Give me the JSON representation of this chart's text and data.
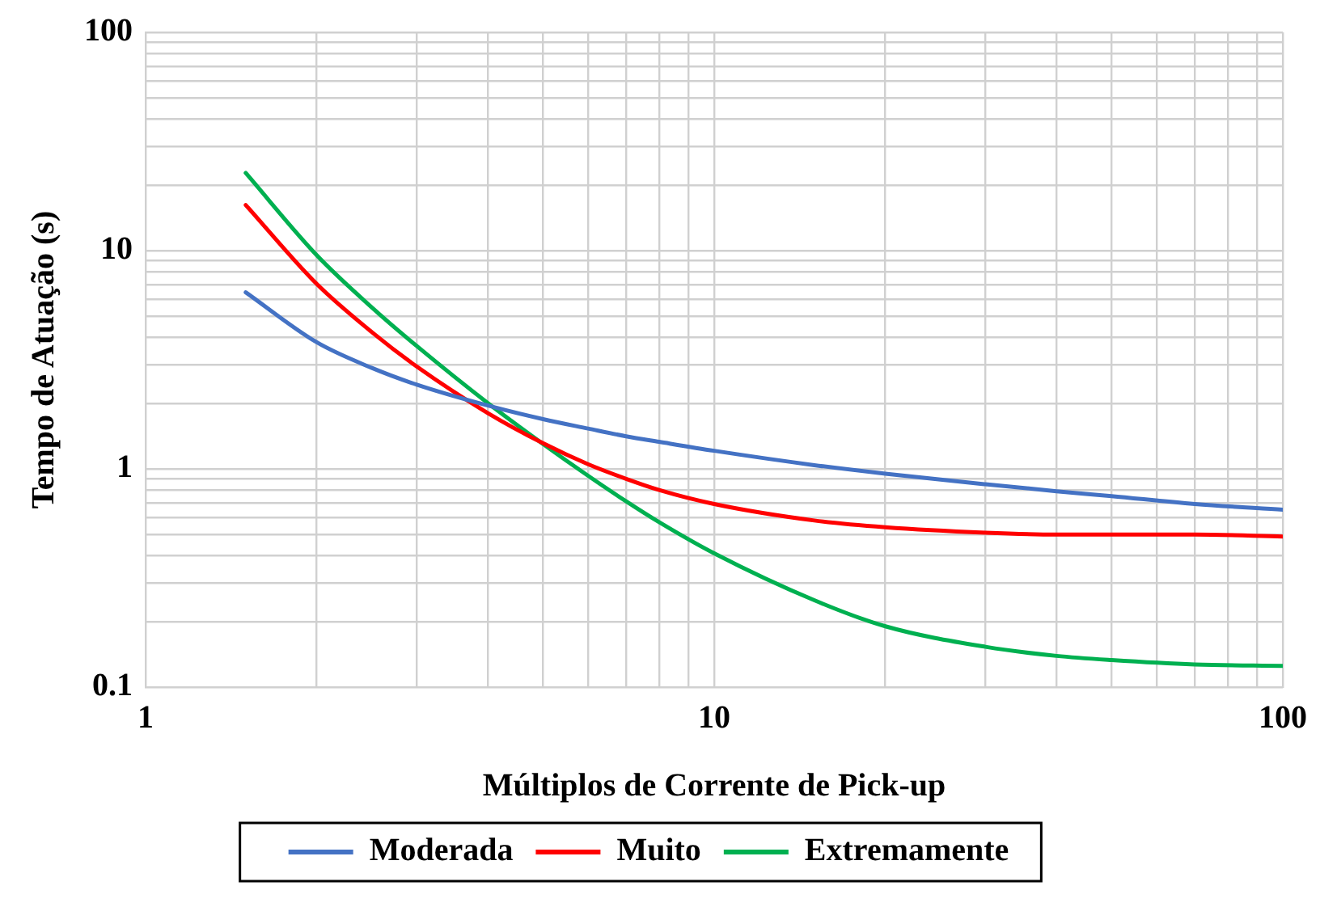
{
  "chart_data": {
    "type": "line",
    "xlabel": "Múltiplos de Corrente de Pick-up",
    "ylabel": "Tempo de Atuação (s)",
    "x": [
      1.5,
      2,
      2.5,
      3,
      4,
      5,
      6,
      7,
      8,
      10,
      15,
      20,
      30,
      40,
      50,
      70,
      100
    ],
    "series": [
      {
        "name": "Moderada",
        "color": "#4472c4",
        "values": [
          6.44,
          3.8,
          2.9,
          2.43,
          1.95,
          1.69,
          1.53,
          1.41,
          1.33,
          1.21,
          1.04,
          0.95,
          0.85,
          0.79,
          0.75,
          0.69,
          0.65
        ]
      },
      {
        "name": "Muito",
        "color": "#ff0000",
        "values": [
          16.18,
          7.03,
          4.23,
          2.94,
          1.8,
          1.31,
          1.05,
          0.9,
          0.8,
          0.69,
          0.58,
          0.54,
          0.51,
          0.5,
          0.5,
          0.5,
          0.49
        ]
      },
      {
        "name": "Extremamente",
        "color": "#00b050",
        "values": [
          22.68,
          9.52,
          5.49,
          3.65,
          2.0,
          1.3,
          0.93,
          0.71,
          0.57,
          0.41,
          0.25,
          0.19,
          0.153,
          0.139,
          0.133,
          0.127,
          0.125
        ]
      }
    ],
    "log": "xy",
    "xlim": [
      1,
      100
    ],
    "ylim": [
      0.1,
      100
    ],
    "xticks": [
      1,
      {
        "value": 2,
        "label": null
      },
      {
        "value": 3,
        "label": null
      },
      {
        "value": 4,
        "label": null
      },
      {
        "value": 5,
        "label": null
      },
      {
        "value": 6,
        "label": null
      },
      {
        "value": 7,
        "label": null
      },
      {
        "value": 8,
        "label": null
      },
      {
        "value": 9,
        "label": null
      },
      10,
      {
        "value": 20,
        "label": null
      },
      {
        "value": 30,
        "label": null
      },
      {
        "value": 40,
        "label": null
      },
      {
        "value": 50,
        "label": null
      },
      {
        "value": 60,
        "label": null
      },
      {
        "value": 70,
        "label": null
      },
      {
        "value": 80,
        "label": null
      },
      {
        "value": 90,
        "label": null
      },
      100
    ],
    "yticks": [
      {
        "value": 0.1,
        "label": "0.1"
      },
      {
        "value": 0.2,
        "label": null
      },
      {
        "value": 0.3,
        "label": null
      },
      {
        "value": 0.4,
        "label": null
      },
      {
        "value": 0.5,
        "label": null
      },
      {
        "value": 0.6,
        "label": null
      },
      {
        "value": 0.7,
        "label": null
      },
      {
        "value": 0.8,
        "label": null
      },
      {
        "value": 0.9,
        "label": null
      },
      1,
      {
        "value": 2,
        "label": null
      },
      {
        "value": 3,
        "label": null
      },
      {
        "value": 4,
        "label": null
      },
      {
        "value": 5,
        "label": null
      },
      {
        "value": 6,
        "label": null
      },
      {
        "value": 7,
        "label": null
      },
      {
        "value": 8,
        "label": null
      },
      {
        "value": 9,
        "label": null
      },
      10,
      {
        "value": 20,
        "label": null
      },
      {
        "value": 30,
        "label": null
      },
      {
        "value": 40,
        "label": null
      },
      {
        "value": 50,
        "label": null
      },
      {
        "value": 60,
        "label": null
      },
      {
        "value": 70,
        "label": null
      },
      {
        "value": 80,
        "label": null
      },
      {
        "value": 90,
        "label": null
      },
      100
    ],
    "grid": true,
    "legend": "bottom",
    "marker": "none",
    "line_style": "solid"
  }
}
